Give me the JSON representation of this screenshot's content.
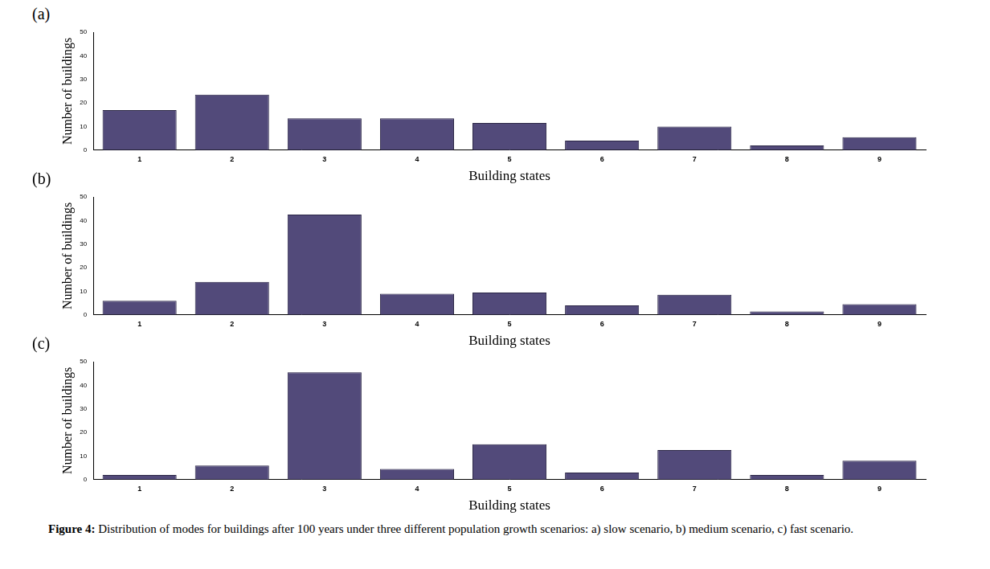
{
  "chart_data": [
    {
      "type": "bar",
      "title": "(a)",
      "x_label": "Building states",
      "y_label": "Number of buildings",
      "categories": [
        "1",
        "2",
        "3",
        "4",
        "5",
        "6",
        "7",
        "8",
        "9"
      ],
      "values": [
        17,
        23.5,
        13.5,
        13.5,
        11.5,
        4,
        10,
        2,
        5.5
      ],
      "color": "#524a7a",
      "ylim": [
        0,
        50
      ],
      "yticks": [
        0,
        10,
        20,
        30,
        40,
        50
      ],
      "grid": false
    },
    {
      "type": "bar",
      "title": "(b)",
      "x_label": "Building states",
      "y_label": "Number of buildings",
      "categories": [
        "1",
        "2",
        "3",
        "4",
        "5",
        "6",
        "7",
        "8",
        "9"
      ],
      "values": [
        6,
        14,
        42.5,
        9,
        9.5,
        4,
        8.5,
        1.5,
        4.5
      ],
      "color": "#524a7a",
      "ylim": [
        0,
        50
      ],
      "yticks": [
        0,
        10,
        20,
        30,
        40,
        50
      ],
      "grid": false
    },
    {
      "type": "bar",
      "title": "(c)",
      "x_label": "Building states",
      "y_label": "Number of buildings",
      "categories": [
        "1",
        "2",
        "3",
        "4",
        "5",
        "6",
        "7",
        "8",
        "9"
      ],
      "values": [
        2,
        6,
        45.5,
        4.5,
        15,
        3,
        12.5,
        2,
        8
      ],
      "color": "#524a7a",
      "ylim": [
        0,
        50
      ],
      "yticks": [
        0,
        10,
        20,
        30,
        40,
        50
      ],
      "grid": false
    }
  ],
  "caption": {
    "label": "Figure 4:",
    "text": "Distribution of modes for buildings after 100 years under three different population growth scenarios: a) slow scenario, b) medium scenario, c) fast scenario."
  }
}
